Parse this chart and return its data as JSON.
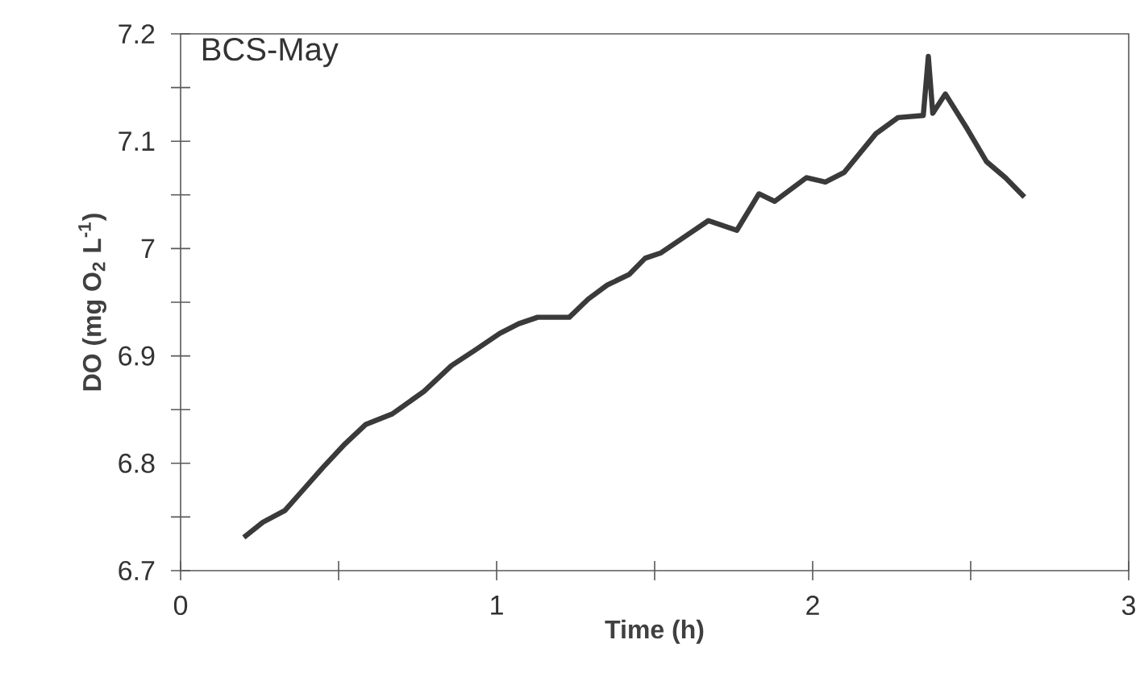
{
  "chart_data": {
    "type": "line",
    "title": "BCS-May",
    "xlabel": "Time (h)",
    "ylabel": "DO (mg O$_{2}$ L$^{-1}$)",
    "x": [
      0.2,
      0.26,
      0.33,
      0.39,
      0.45,
      0.52,
      0.585,
      0.67,
      0.77,
      0.857,
      0.93,
      1.01,
      1.07,
      1.13,
      1.23,
      1.29,
      1.35,
      1.42,
      1.47,
      1.52,
      1.6,
      1.67,
      1.76,
      1.83,
      1.88,
      1.98,
      2.04,
      2.1,
      2.2,
      2.27,
      2.35,
      2.366,
      2.38,
      2.42,
      2.49,
      2.55,
      2.61,
      2.67
    ],
    "series": [
      {
        "color": "#3a3a3a",
        "values": [
          6.731,
          6.745,
          6.756,
          6.776,
          6.796,
          6.818,
          6.836,
          6.846,
          6.867,
          6.891,
          6.905,
          6.921,
          6.93,
          6.936,
          6.936,
          6.953,
          6.966,
          6.976,
          6.991,
          6.996,
          7.012,
          7.026,
          7.017,
          7.051,
          7.044,
          7.066,
          7.062,
          7.071,
          7.107,
          7.122,
          7.124,
          7.179,
          7.126,
          7.144,
          7.111,
          7.081,
          7.066,
          7.048
        ]
      }
    ],
    "xlim": [
      0,
      3
    ],
    "ylim": [
      6.7,
      7.2
    ],
    "xticks": [
      0,
      1,
      2,
      3
    ],
    "yticks": [
      6.7,
      6.8,
      6.9,
      7,
      7.1,
      7.2
    ]
  }
}
